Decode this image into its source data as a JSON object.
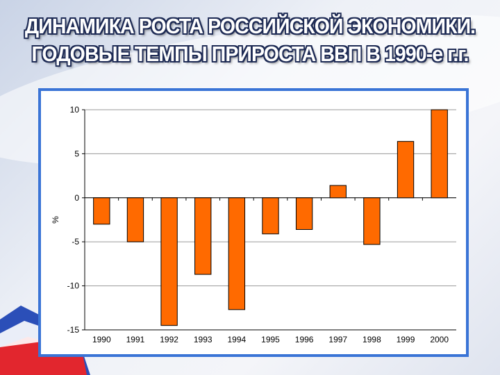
{
  "title_line1": "ДИНАМИКА РОСТА РОССИЙСКОЙ ЭКОНОМИКИ.",
  "title_line2": "ГОДОВЫЕ ТЕМПЫ ПРИРОСТА ВВП В 1990-е г.г.",
  "colors": {
    "bar": "#ff6a00",
    "frame": "#3a74d6",
    "title_outline": "#1e2b55"
  },
  "chart_data": {
    "type": "bar",
    "title": "",
    "xlabel": "",
    "ylabel": "%",
    "categories": [
      "1990",
      "1991",
      "1992",
      "1993",
      "1994",
      "1995",
      "1996",
      "1997",
      "1998",
      "1999",
      "2000"
    ],
    "values": [
      -3.0,
      -5.0,
      -14.5,
      -8.7,
      -12.7,
      -4.1,
      -3.6,
      1.4,
      -5.3,
      6.4,
      10.0
    ],
    "ylim": [
      -15,
      10
    ],
    "yticks": [
      "10",
      "5",
      "0",
      "-5",
      "-10",
      "-15"
    ],
    "grid": true,
    "legend": "none"
  }
}
